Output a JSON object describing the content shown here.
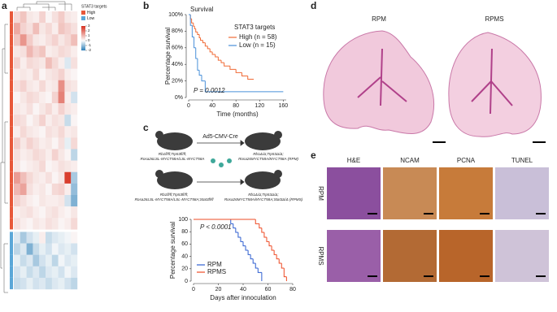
{
  "panel_labels": [
    "a",
    "b",
    "c",
    "d",
    "e"
  ],
  "chart_data": [
    {
      "type": "heatmap",
      "legend_title": "STAT3 targets",
      "legend": [
        {
          "name": "High",
          "color": "#e8583a"
        },
        {
          "name": "Low",
          "color": "#5aa7d8"
        }
      ],
      "colorbar_ticks": [
        3,
        2,
        1,
        0,
        -1,
        -2
      ],
      "colors": {
        "high": "#d7301f",
        "mid": "#fbfbfb",
        "low": "#2c7fb8"
      },
      "row_groups": [
        0,
        0,
        0,
        0,
        0,
        0,
        0,
        0,
        0,
        0,
        0,
        0,
        0,
        0,
        0,
        0,
        0,
        0,
        0,
        1,
        1,
        1,
        1,
        1
      ],
      "values": [
        [
          0.5,
          0.8,
          0.3,
          0.2,
          0.6,
          0.1,
          0.4,
          0.7,
          0.3,
          0.2
        ],
        [
          1.2,
          0.6,
          0.4,
          0.9,
          0.3,
          0.5,
          0.2,
          0.8,
          0.6,
          0.4
        ],
        [
          0.8,
          1.5,
          0.7,
          0.3,
          0.2,
          0.4,
          0.6,
          0.3,
          0.5,
          0.9
        ],
        [
          0.3,
          0.4,
          1.0,
          0.6,
          0.8,
          0.2,
          0.3,
          0.5,
          0.4,
          0.2
        ],
        [
          0.6,
          0.2,
          0.5,
          0.4,
          0.3,
          0.9,
          0.5,
          0.2,
          -0.3,
          0.4
        ],
        [
          0.2,
          0.3,
          0.2,
          0.5,
          0.1,
          0.3,
          0.4,
          0.6,
          0.2,
          0.1
        ],
        [
          0.4,
          0.6,
          0.3,
          0.2,
          0.5,
          0.2,
          0.3,
          1.6,
          0.4,
          0.3
        ],
        [
          0.1,
          0.3,
          0.5,
          0.4,
          0.2,
          0.1,
          0.6,
          1.8,
          0.2,
          -0.4
        ],
        [
          0.3,
          0.2,
          0.4,
          0.1,
          0.3,
          0.5,
          0.2,
          0.6,
          0.3,
          0.2
        ],
        [
          0.5,
          0.4,
          0.1,
          0.3,
          0.6,
          0.2,
          0.4,
          0.3,
          -0.5,
          0.1
        ],
        [
          0.2,
          0.5,
          0.3,
          0.2,
          0.1,
          0.4,
          0.3,
          0.5,
          0.2,
          0.3
        ],
        [
          0.7,
          0.3,
          0.6,
          0.4,
          0.2,
          0.3,
          0.1,
          0.4,
          -0.2,
          0.5
        ],
        [
          0.4,
          0.2,
          0.3,
          0.5,
          0.4,
          0.2,
          0.6,
          0.3,
          0.1,
          -0.6
        ],
        [
          0.3,
          0.1,
          0.2,
          0.3,
          0.5,
          0.1,
          0.2,
          0.4,
          0.3,
          0.2
        ],
        [
          1.4,
          0.9,
          0.5,
          0.3,
          0.2,
          0.4,
          0.1,
          0.3,
          2.8,
          -0.8
        ],
        [
          1.0,
          1.3,
          0.4,
          0.2,
          0.3,
          0.1,
          0.5,
          0.6,
          0.2,
          -1.0
        ],
        [
          0.6,
          0.4,
          0.2,
          0.1,
          0.3,
          0.2,
          0.2,
          0.3,
          -0.4,
          -1.2
        ],
        [
          0.2,
          0.3,
          0.4,
          0.2,
          0.1,
          0.3,
          0.4,
          0.2,
          0.1,
          0.3
        ],
        [
          0.4,
          0.2,
          0.1,
          0.3,
          0.2,
          0.4,
          0.3,
          0.1,
          0.2,
          0.5
        ],
        [
          -0.3,
          -0.8,
          -0.4,
          -0.2,
          0.2,
          -0.5,
          -0.3,
          -0.2,
          -0.1,
          0.1
        ],
        [
          -0.6,
          -0.3,
          -1.2,
          -0.5,
          -0.2,
          -0.4,
          -0.1,
          -0.3,
          -0.2,
          -0.4
        ],
        [
          -0.2,
          -0.5,
          -0.3,
          -0.8,
          -0.4,
          -0.2,
          -0.6,
          -0.1,
          -0.3,
          -0.2
        ],
        [
          -0.4,
          -0.2,
          -0.5,
          -0.3,
          -0.6,
          -0.3,
          -0.2,
          -0.4,
          -0.1,
          -0.3
        ],
        [
          -0.5,
          -0.4,
          -0.2,
          -0.4,
          -0.3,
          -0.5,
          -0.3,
          -0.2,
          -0.4,
          -0.6
        ]
      ]
    },
    {
      "type": "survival",
      "title": "Survival",
      "legend_title": "STAT3 targets",
      "annotation": "P = 0.0012",
      "xlabel": "Time (months)",
      "ylabel": "Percentage survival",
      "xlim": [
        0,
        165
      ],
      "ylim": [
        0,
        100
      ],
      "xticks": [
        0,
        40,
        80,
        120,
        160
      ],
      "yticks": [
        {
          "value": 0,
          "label": "0%"
        },
        {
          "value": 20,
          "label": "20%"
        },
        {
          "value": 40,
          "label": "40%"
        },
        {
          "value": 60,
          "label": "60%"
        },
        {
          "value": 80,
          "label": "80%"
        },
        {
          "value": 100,
          "label": "100%"
        }
      ],
      "series": [
        {
          "name": "High (n = 58)",
          "color": "#f06a35",
          "x": [
            0,
            3,
            5,
            8,
            10,
            12,
            15,
            18,
            20,
            24,
            28,
            32,
            36,
            40,
            45,
            50,
            55,
            60,
            70,
            80,
            90,
            100,
            110
          ],
          "values": [
            100,
            95,
            90,
            86,
            83,
            79,
            76,
            72,
            69,
            66,
            62,
            59,
            55,
            52,
            49,
            45,
            42,
            38,
            34,
            30,
            26,
            22,
            22
          ]
        },
        {
          "name": "Low (n = 15)",
          "color": "#4a90d9",
          "x": [
            0,
            3,
            6,
            9,
            12,
            15,
            18,
            22,
            28,
            160
          ],
          "values": [
            100,
            87,
            73,
            60,
            47,
            33,
            27,
            20,
            7,
            7
          ]
        }
      ]
    },
    {
      "type": "survival",
      "annotation": "P < 0.0001",
      "xlabel": "Days after innoculation",
      "ylabel": "Percentage survival",
      "xlim": [
        0,
        80
      ],
      "ylim": [
        0,
        100
      ],
      "xticks": [
        0,
        20,
        40,
        60,
        80
      ],
      "yticks": [
        0,
        20,
        40,
        60,
        80,
        100
      ],
      "series": [
        {
          "name": "RPM",
          "color": "#2f5fd0",
          "x": [
            0,
            30,
            32,
            34,
            36,
            38,
            40,
            42,
            44,
            46,
            48,
            50,
            52,
            55
          ],
          "values": [
            100,
            93,
            86,
            79,
            71,
            64,
            57,
            50,
            43,
            36,
            29,
            21,
            14,
            0
          ]
        },
        {
          "name": "RPMS",
          "color": "#ee4b25",
          "x": [
            0,
            50,
            53,
            55,
            57,
            59,
            61,
            63,
            65,
            67,
            69,
            71,
            73,
            75
          ],
          "values": [
            100,
            93,
            86,
            79,
            71,
            64,
            57,
            50,
            43,
            36,
            29,
            21,
            7,
            0
          ]
        }
      ]
    }
  ],
  "schematic": {
    "vector": "Ad5-CMV-Cre",
    "rpm_before": [
      "Rb1fl/fl;Trp53fl/fl;",
      "Rosa26LSL-MYCT58A/LSL-MYCT58A"
    ],
    "rpm_after": [
      "Rb1Δ/Δ;Trp53Δ/Δ;",
      "Rosa26MYCT58A/MYCT58A (RPM)"
    ],
    "rpms_before": [
      "Rb1fl/fl;Trp53fl/fl;",
      "Rosa26LSL-MYCT58A/LSL-MYCT58A;Stat3fl/fl"
    ],
    "rpms_after": [
      "Rb1Δ/Δ;Trp53Δ/Δ;",
      "Rosa26MYCT58A/MYCT58A;Stat3Δ/Δ (RPMS)"
    ]
  },
  "panel_d": {
    "labels": [
      "RPM",
      "RPMS"
    ]
  },
  "panel_e": {
    "columns": [
      "H&E",
      "NCAM",
      "PCNA",
      "TUNEL"
    ],
    "rows": [
      "RPM",
      "RPMS"
    ]
  }
}
